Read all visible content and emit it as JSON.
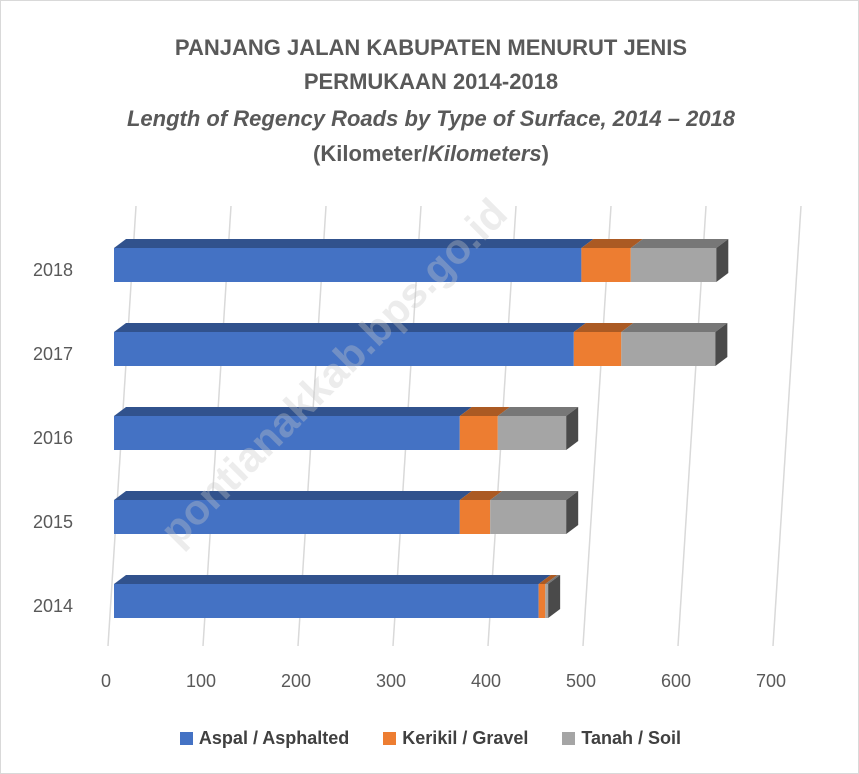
{
  "chart_data": {
    "type": "bar3d_stacked_horizontal",
    "title": "PANJANG JALAN KABUPATEN MENURUT JENIS PERMUKAAN 2014-2018",
    "subtitle": [
      "Length of Regency Roads by Type of Surface, 2014 – 2018",
      "(Kilometer/",
      "Kilometers",
      ")"
    ],
    "categories": [
      "2014",
      "2015",
      "2016",
      "2017",
      "2018"
    ],
    "series": [
      {
        "name": "Aspal / Asphalted",
        "color": "#4472c4",
        "values": [
          447,
          364,
          364,
          484,
          492
        ]
      },
      {
        "name": "Kerikil / Gravel",
        "color": "#ed7d31",
        "values": [
          7,
          32,
          40,
          50,
          52
        ]
      },
      {
        "name": "Tanah / Soil",
        "color": "#a5a5a5",
        "values": [
          3,
          80,
          72,
          99,
          90
        ]
      }
    ],
    "xlim": [
      0,
      700
    ],
    "xticks": [
      0,
      100,
      200,
      300,
      400,
      500,
      600,
      700
    ],
    "grid": true,
    "legend": "bottom",
    "watermark": "pontianakkab.bps.go.id"
  }
}
